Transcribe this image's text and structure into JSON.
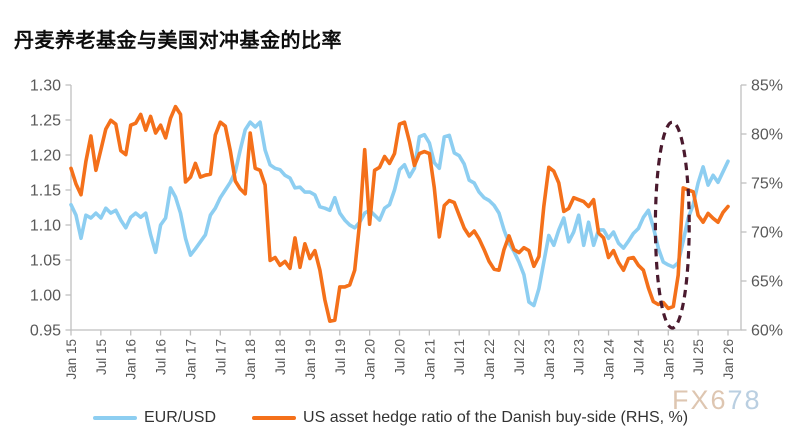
{
  "title": "丹麦养老基金与美国对冲基金的比率",
  "watermark": {
    "part1": "FX6",
    "part2": "78",
    "color1": "#d9bda4",
    "color2": "#aec7dc"
  },
  "legend": [
    {
      "label": "EUR/USD",
      "color": "#8DCEF1"
    },
    {
      "label": "US asset hedge ratio of the Danish buy-side (RHS, %)",
      "color": "#F4701A"
    }
  ],
  "axis_style": {
    "line_color": "#BFBFBF",
    "label_color": "#595959"
  },
  "chart_data": {
    "type": "line",
    "title": "丹麦养老基金与美国对冲基金的比率",
    "x_start": "Jan 2015",
    "x_end": "Jan 2026",
    "x_frequency": "monthly",
    "grid": false,
    "legend_position": "bottom",
    "x_tick_labels": [
      "Jan 15",
      "Jul 15",
      "Jan 16",
      "Jul 16",
      "Jan 17",
      "Jul 17",
      "Jan 18",
      "Jul 18",
      "Jan 19",
      "Jul 19",
      "Jan 20",
      "Jul 20",
      "Jan 21",
      "Jul 21",
      "Jan 22",
      "Jul 22",
      "Jan 23",
      "Jul 23",
      "Jan 24",
      "Jul 24",
      "Jan 25",
      "Jul 25",
      "Jan 26"
    ],
    "left_axis": {
      "min": 0.95,
      "max": 1.3,
      "tick_step": 0.05,
      "ticks": [
        "1.30",
        "1.25",
        "1.20",
        "1.15",
        "1.10",
        "1.05",
        "1.00",
        "0.95"
      ]
    },
    "right_axis": {
      "min": 60,
      "max": 85,
      "tick_step": 5,
      "ticks": [
        "85%",
        "80%",
        "75%",
        "70%",
        "65%",
        "60%"
      ]
    },
    "series": [
      {
        "name": "EUR/USD",
        "axis": "left",
        "color": "#8DCEF1",
        "values": [
          1.129,
          1.114,
          1.081,
          1.114,
          1.11,
          1.117,
          1.11,
          1.124,
          1.117,
          1.121,
          1.107,
          1.096,
          1.111,
          1.117,
          1.111,
          1.117,
          1.086,
          1.061,
          1.1,
          1.11,
          1.153,
          1.14,
          1.117,
          1.081,
          1.057,
          1.066,
          1.076,
          1.086,
          1.114,
          1.124,
          1.139,
          1.15,
          1.161,
          1.176,
          1.207,
          1.236,
          1.247,
          1.24,
          1.247,
          1.207,
          1.186,
          1.181,
          1.179,
          1.171,
          1.167,
          1.153,
          1.154,
          1.147,
          1.147,
          1.143,
          1.126,
          1.124,
          1.121,
          1.139,
          1.117,
          1.107,
          1.1,
          1.096,
          1.104,
          1.117,
          1.121,
          1.114,
          1.107,
          1.124,
          1.129,
          1.15,
          1.179,
          1.186,
          1.169,
          1.181,
          1.226,
          1.229,
          1.217,
          1.189,
          1.181,
          1.226,
          1.228,
          1.203,
          1.199,
          1.187,
          1.164,
          1.16,
          1.147,
          1.139,
          1.135,
          1.128,
          1.117,
          1.093,
          1.074,
          1.062,
          1.047,
          1.029,
          0.99,
          0.985,
          1.009,
          1.047,
          1.085,
          1.071,
          1.093,
          1.11,
          1.076,
          1.09,
          1.114,
          1.071,
          1.104,
          1.071,
          1.093,
          1.093,
          1.081,
          1.09,
          1.074,
          1.067,
          1.077,
          1.088,
          1.095,
          1.111,
          1.121,
          1.097,
          1.067,
          1.047,
          1.043,
          1.04,
          1.046,
          1.077,
          1.11,
          1.129,
          1.16,
          1.183,
          1.157,
          1.171,
          1.161,
          1.176,
          1.191
        ]
      },
      {
        "name": "US asset hedge ratio of the Danish buy-side (RHS, %)",
        "axis": "right",
        "color": "#F4701A",
        "values": [
          76.5,
          74.9,
          73.8,
          77.2,
          79.8,
          76.3,
          78.4,
          80.5,
          81.4,
          81.0,
          78.3,
          77.9,
          80.9,
          81.1,
          82.0,
          80.4,
          81.8,
          80.1,
          80.9,
          79.6,
          81.6,
          82.8,
          82.0,
          75.1,
          75.6,
          77.0,
          75.6,
          75.8,
          75.9,
          79.9,
          81.2,
          80.8,
          78.3,
          75.2,
          74.4,
          73.9,
          80.1,
          76.5,
          76.3,
          74.8,
          67.1,
          67.4,
          66.6,
          67.0,
          66.3,
          69.4,
          66.4,
          68.8,
          67.3,
          68.1,
          66.1,
          63.1,
          60.9,
          61.0,
          64.4,
          64.4,
          64.6,
          66.1,
          71.0,
          78.4,
          70.8,
          76.3,
          76.6,
          77.7,
          77.0,
          78.0,
          81.0,
          81.2,
          79.2,
          76.8,
          78.0,
          78.2,
          78.0,
          74.5,
          69.5,
          72.7,
          73.2,
          73.0,
          71.7,
          70.4,
          69.6,
          70.1,
          69.3,
          68.2,
          67.0,
          66.2,
          66.1,
          68.2,
          69.6,
          68.2,
          67.9,
          68.4,
          68.1,
          66.5,
          67.5,
          72.6,
          76.6,
          76.2,
          75.0,
          72.1,
          72.4,
          73.5,
          73.3,
          73.1,
          72.6,
          73.3,
          69.9,
          69.4,
          67.4,
          68.1,
          66.9,
          66.1,
          67.3,
          67.4,
          66.6,
          66.1,
          64.3,
          62.9,
          62.6,
          62.8,
          62.2,
          62.4,
          65.6,
          74.5,
          74.3,
          74.1,
          71.7,
          71.0,
          71.9,
          71.4,
          71.0,
          72.0,
          72.6
        ]
      }
    ],
    "annotation_ellipse": {
      "shape": "dashed-ellipse",
      "color": "#4A1A2E",
      "center_month_index": 120.8,
      "center_right_axis_value": 70.7,
      "rx_months": 3.4,
      "ry_right_axis_units": 10.5
    }
  }
}
